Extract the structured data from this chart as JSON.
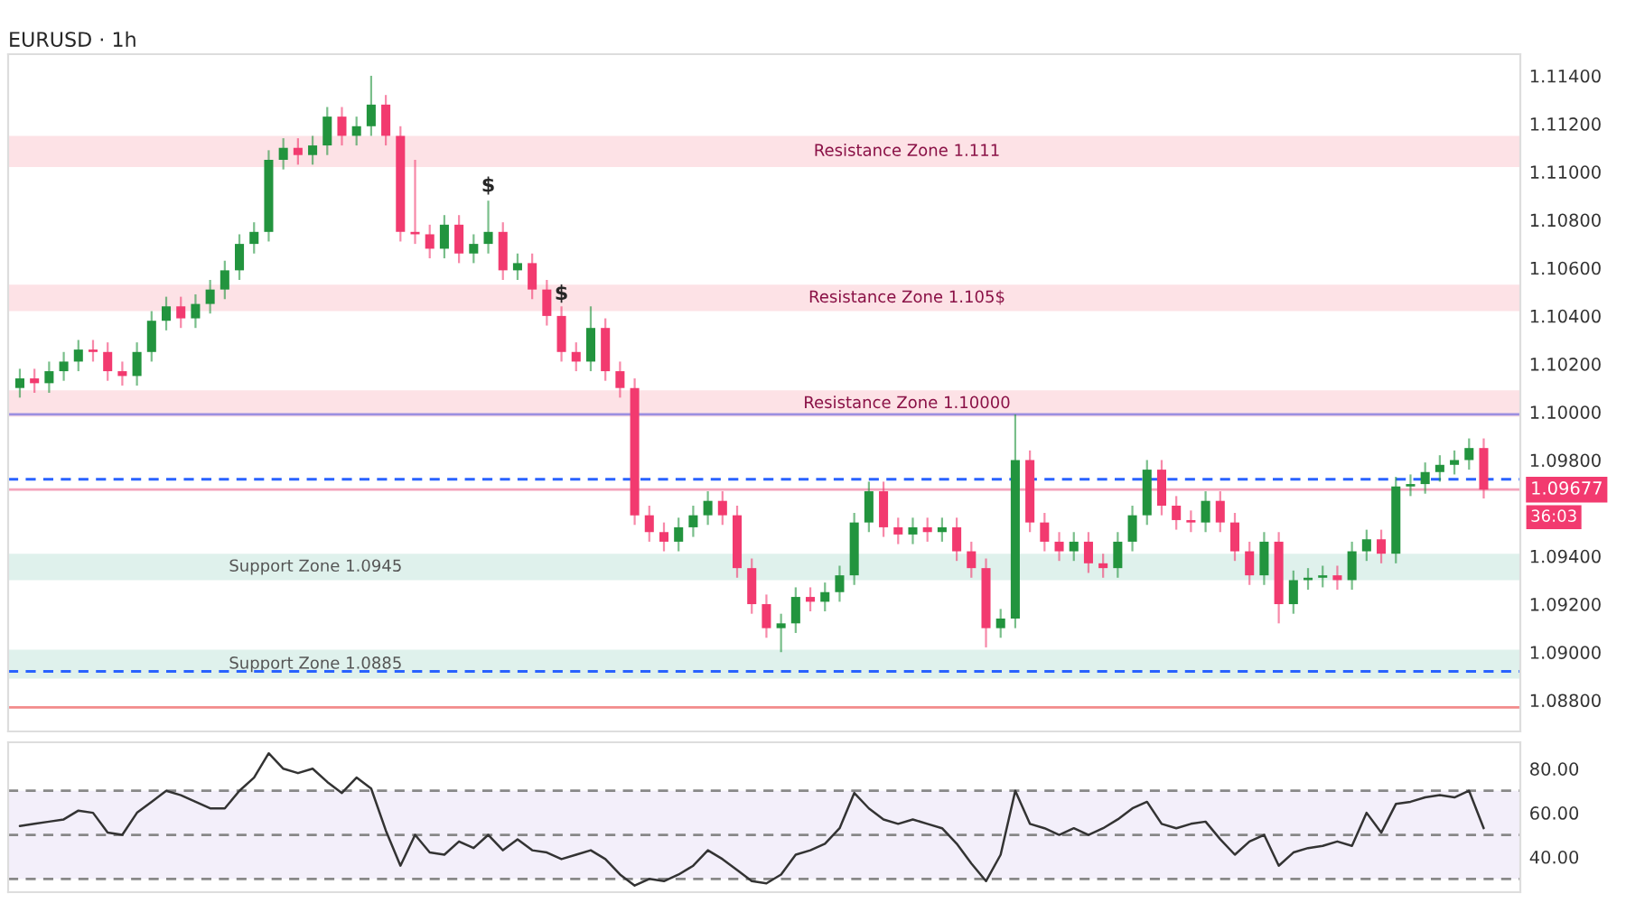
{
  "chart_data": [
    {
      "type": "candlestick",
      "title": "EURUSD · 1h",
      "categories": [
        null,
        null,
        null,
        null,
        null,
        null,
        null,
        null,
        null,
        null,
        null,
        null,
        null,
        null,
        null,
        null,
        null,
        null,
        null,
        null,
        null,
        null,
        null,
        null,
        null,
        null,
        null,
        null,
        null,
        null,
        null,
        null,
        null,
        null,
        null,
        null,
        null,
        null,
        null,
        null,
        null,
        null,
        null,
        null,
        null,
        null,
        null,
        null,
        null,
        null,
        null,
        null,
        null,
        null,
        null,
        null,
        null,
        null,
        null,
        null,
        null,
        null,
        null,
        null,
        null,
        null,
        null,
        null,
        null,
        null,
        null,
        null,
        null,
        null,
        null,
        null,
        null,
        null,
        null,
        null,
        null,
        null,
        null,
        null,
        null,
        null,
        null,
        null,
        null,
        null,
        null,
        null,
        null,
        null,
        null,
        null,
        null,
        null,
        null,
        null,
        null
      ],
      "ohlc": [
        [
          1.101,
          1.1018,
          1.1006,
          1.1014
        ],
        [
          1.1014,
          1.1018,
          1.1008,
          1.1012
        ],
        [
          1.1012,
          1.1021,
          1.1008,
          1.1017
        ],
        [
          1.1017,
          1.1025,
          1.1013,
          1.1021
        ],
        [
          1.1021,
          1.103,
          1.1017,
          1.1026
        ],
        [
          1.1026,
          1.103,
          1.1021,
          1.1025
        ],
        [
          1.1025,
          1.1029,
          1.1013,
          1.1017
        ],
        [
          1.1017,
          1.1021,
          1.1011,
          1.1015
        ],
        [
          1.1015,
          1.1029,
          1.1011,
          1.1025
        ],
        [
          1.1025,
          1.1042,
          1.1021,
          1.1038
        ],
        [
          1.1038,
          1.1048,
          1.1034,
          1.1044
        ],
        [
          1.1044,
          1.1048,
          1.1035,
          1.1039
        ],
        [
          1.1039,
          1.1049,
          1.1035,
          1.1045
        ],
        [
          1.1045,
          1.1055,
          1.1041,
          1.1051
        ],
        [
          1.1051,
          1.1063,
          1.1047,
          1.1059
        ],
        [
          1.1059,
          1.1074,
          1.1055,
          1.107
        ],
        [
          1.107,
          1.1079,
          1.1066,
          1.1075
        ],
        [
          1.1075,
          1.1109,
          1.1071,
          1.1105
        ],
        [
          1.1105,
          1.1114,
          1.1101,
          1.111
        ],
        [
          1.111,
          1.1114,
          1.1103,
          1.1107
        ],
        [
          1.1107,
          1.1115,
          1.1103,
          1.1111
        ],
        [
          1.1111,
          1.1127,
          1.1107,
          1.1123
        ],
        [
          1.1123,
          1.1127,
          1.1111,
          1.1115
        ],
        [
          1.1115,
          1.1123,
          1.1111,
          1.1119
        ],
        [
          1.1119,
          1.114,
          1.1115,
          1.1128
        ],
        [
          1.1128,
          1.1132,
          1.1111,
          1.1115
        ],
        [
          1.1115,
          1.1119,
          1.1071,
          1.1075
        ],
        [
          1.1075,
          1.1105,
          1.107,
          1.1074
        ],
        [
          1.1074,
          1.1078,
          1.1064,
          1.1068
        ],
        [
          1.1068,
          1.1082,
          1.1064,
          1.1078
        ],
        [
          1.1078,
          1.1082,
          1.1062,
          1.1066
        ],
        [
          1.1066,
          1.1074,
          1.1062,
          1.107
        ],
        [
          1.107,
          1.1088,
          1.1066,
          1.1075
        ],
        [
          1.1075,
          1.1079,
          1.1055,
          1.1059
        ],
        [
          1.1059,
          1.1066,
          1.1055,
          1.1062
        ],
        [
          1.1062,
          1.1066,
          1.1047,
          1.1051
        ],
        [
          1.1051,
          1.1055,
          1.1036,
          1.104
        ],
        [
          1.104,
          1.1044,
          1.1021,
          1.1025
        ],
        [
          1.1025,
          1.1029,
          1.1017,
          1.1021
        ],
        [
          1.1021,
          1.1044,
          1.1017,
          1.1035
        ],
        [
          1.1035,
          1.1039,
          1.1013,
          1.1017
        ],
        [
          1.1017,
          1.1021,
          1.1006,
          1.101
        ],
        [
          1.101,
          1.1014,
          1.0953,
          1.0957
        ],
        [
          1.0957,
          1.0961,
          1.0946,
          1.095
        ],
        [
          1.095,
          1.0954,
          1.0942,
          1.0946
        ],
        [
          1.0946,
          1.0956,
          1.0942,
          1.0952
        ],
        [
          1.0952,
          1.0961,
          1.0948,
          1.0957
        ],
        [
          1.0957,
          1.0967,
          1.0953,
          1.0963
        ],
        [
          1.0963,
          1.0967,
          1.0953,
          1.0957
        ],
        [
          1.0957,
          1.0961,
          1.0931,
          1.0935
        ],
        [
          1.0935,
          1.0939,
          1.0916,
          1.092
        ],
        [
          1.092,
          1.0924,
          1.0906,
          1.091
        ],
        [
          1.091,
          1.0916,
          1.09,
          1.0912
        ],
        [
          1.0912,
          1.0927,
          1.0908,
          1.0923
        ],
        [
          1.0923,
          1.0927,
          1.0917,
          1.0921
        ],
        [
          1.0921,
          1.0929,
          1.0917,
          1.0925
        ],
        [
          1.0925,
          1.0936,
          1.0921,
          1.0932
        ],
        [
          1.0932,
          1.0958,
          1.0928,
          1.0954
        ],
        [
          1.0954,
          1.0971,
          1.095,
          1.0967
        ],
        [
          1.0967,
          1.0971,
          1.0948,
          1.0952
        ],
        [
          1.0952,
          1.0956,
          1.0945,
          1.0949
        ],
        [
          1.0949,
          1.0956,
          1.0945,
          1.0952
        ],
        [
          1.0952,
          1.0956,
          1.0946,
          1.095
        ],
        [
          1.095,
          1.0956,
          1.0946,
          1.0952
        ],
        [
          1.0952,
          1.0956,
          1.0938,
          1.0942
        ],
        [
          1.0942,
          1.0946,
          1.0931,
          1.0935
        ],
        [
          1.0935,
          1.0939,
          1.0902,
          1.091
        ],
        [
          1.091,
          1.0918,
          1.0906,
          1.0914
        ],
        [
          1.0914,
          1.0999,
          1.091,
          1.098
        ],
        [
          1.098,
          1.0984,
          1.095,
          1.0954
        ],
        [
          1.0954,
          1.0958,
          1.0942,
          1.0946
        ],
        [
          1.0946,
          1.095,
          1.0938,
          1.0942
        ],
        [
          1.0942,
          1.095,
          1.0938,
          1.0946
        ],
        [
          1.0946,
          1.095,
          1.0933,
          1.0937
        ],
        [
          1.0937,
          1.0941,
          1.0931,
          1.0935
        ],
        [
          1.0935,
          1.095,
          1.0931,
          1.0946
        ],
        [
          1.0946,
          1.0961,
          1.0942,
          1.0957
        ],
        [
          1.0957,
          1.098,
          1.0953,
          1.0976
        ],
        [
          1.0976,
          1.098,
          1.0957,
          1.0961
        ],
        [
          1.0961,
          1.0965,
          1.0951,
          1.0955
        ],
        [
          1.0955,
          1.0959,
          1.095,
          1.0954
        ],
        [
          1.0954,
          1.0967,
          1.095,
          1.0963
        ],
        [
          1.0963,
          1.0967,
          1.095,
          1.0954
        ],
        [
          1.0954,
          1.0958,
          1.0938,
          1.0942
        ],
        [
          1.0942,
          1.0946,
          1.0928,
          1.0932
        ],
        [
          1.0932,
          1.095,
          1.0928,
          1.0946
        ],
        [
          1.0946,
          1.095,
          1.0912,
          1.092
        ],
        [
          1.092,
          1.0934,
          1.0916,
          1.093
        ],
        [
          1.093,
          1.0935,
          1.0926,
          1.0931
        ],
        [
          1.0931,
          1.0936,
          1.0927,
          1.0932
        ],
        [
          1.0932,
          1.0936,
          1.0926,
          1.093
        ],
        [
          1.093,
          1.0946,
          1.0926,
          1.0942
        ],
        [
          1.0942,
          1.0951,
          1.0938,
          1.0947
        ],
        [
          1.0947,
          1.0951,
          1.0937,
          1.0941
        ],
        [
          1.0941,
          1.0973,
          1.0937,
          1.0969
        ],
        [
          1.0969,
          1.0974,
          1.0965,
          1.097
        ],
        [
          1.097,
          1.0979,
          1.0966,
          1.0975
        ],
        [
          1.0975,
          1.0982,
          1.0971,
          1.0978
        ],
        [
          1.0978,
          1.0984,
          1.0974,
          1.098
        ],
        [
          1.098,
          1.0989,
          1.0976,
          1.0985
        ],
        [
          1.0985,
          1.0989,
          1.0964,
          1.09677
        ]
      ],
      "colors": [
        "#22943e",
        "#f23a6f",
        "#22943e",
        "#22943e",
        "#22943e",
        "#f23a6f",
        "#f23a6f",
        "#f23a6f",
        "#22943e",
        "#22943e",
        "#22943e",
        "#f23a6f",
        "#22943e",
        "#22943e",
        "#22943e",
        "#22943e",
        "#22943e",
        "#22943e",
        "#22943e",
        "#f23a6f",
        "#22943e",
        "#22943e",
        "#f23a6f",
        "#22943e",
        "#22943e",
        "#f23a6f",
        "#f23a6f",
        "#f23a6f",
        "#f23a6f",
        "#22943e",
        "#f23a6f",
        "#22943e",
        "#22943e",
        "#f23a6f",
        "#22943e",
        "#f23a6f",
        "#f23a6f",
        "#f23a6f",
        "#f23a6f",
        "#22943e",
        "#f23a6f",
        "#f23a6f",
        "#f23a6f",
        "#f23a6f",
        "#f23a6f",
        "#22943e",
        "#22943e",
        "#22943e",
        "#f23a6f",
        "#f23a6f",
        "#f23a6f",
        "#f23a6f",
        "#22943e",
        "#22943e",
        "#f23a6f",
        "#22943e",
        "#22943e",
        "#22943e",
        "#22943e",
        "#f23a6f",
        "#f23a6f",
        "#22943e",
        "#f23a6f",
        "#22943e",
        "#f23a6f",
        "#f23a6f",
        "#f23a6f",
        "#22943e",
        "#22943e",
        "#f23a6f",
        "#f23a6f",
        "#f23a6f",
        "#22943e",
        "#f23a6f",
        "#f23a6f",
        "#22943e",
        "#22943e",
        "#22943e",
        "#f23a6f",
        "#f23a6f",
        "#f23a6f",
        "#22943e",
        "#f23a6f",
        "#f23a6f",
        "#f23a6f",
        "#22943e",
        "#f23a6f",
        "#22943e",
        "#22943e",
        "#22943e",
        "#f23a6f",
        "#22943e",
        "#22943e",
        "#f23a6f",
        "#22943e",
        "#22943e",
        "#22943e",
        "#22943e",
        "#22943e",
        "#22943e",
        "#f23a6f"
      ],
      "ylim": [
        1.0867,
        1.1149
      ],
      "yticks": [
        {
          "value": 1.088,
          "label": "1.08800"
        },
        {
          "value": 1.09,
          "label": "1.09000"
        },
        {
          "value": 1.092,
          "label": "1.09200"
        },
        {
          "value": 1.094,
          "label": "1.09400"
        },
        {
          "value": 1.098,
          "label": "1.09800"
        },
        {
          "value": 1.1,
          "label": "1.10000"
        },
        {
          "value": 1.102,
          "label": "1.10200"
        },
        {
          "value": 1.104,
          "label": "1.10400"
        },
        {
          "value": 1.106,
          "label": "1.10600"
        },
        {
          "value": 1.108,
          "label": "1.10800"
        },
        {
          "value": 1.11,
          "label": "1.11000"
        },
        {
          "value": 1.112,
          "label": "1.11200"
        },
        {
          "value": 1.114,
          "label": "1.11400"
        }
      ],
      "tick_labels": "y",
      "bands": [
        {
          "axis": "y",
          "from": 1.1102,
          "to": 1.1115,
          "label": "Resistance Zone 1.111",
          "color": "#fde2e6"
        },
        {
          "axis": "y",
          "from": 1.1042,
          "to": 1.1053,
          "label": "Resistance Zone 1.105$",
          "color": "#fde2e6"
        },
        {
          "axis": "y",
          "from": 1.0998,
          "to": 1.1009,
          "label": "Resistance Zone 1.10000",
          "color": "#fde2e6"
        },
        {
          "axis": "y",
          "from": 1.093,
          "to": 1.0941,
          "label": "Support Zone 1.0945",
          "color": "#dff1ec"
        },
        {
          "axis": "y",
          "from": 1.0889,
          "to": 1.0901,
          "label": "Support Zone 1.0885",
          "color": "#dff1ec"
        }
      ],
      "ref_lines": [
        {
          "axis": "y",
          "value": 1.09677,
          "label": "1.09677",
          "color": "#f4a3bb",
          "line_style": "solid"
        },
        {
          "axis": "y",
          "value": 1.0999,
          "color": "#9c8fe0",
          "line_style": "solid"
        },
        {
          "axis": "y",
          "value": 1.0972,
          "color": "#2962ff",
          "line_style": "dashed"
        },
        {
          "axis": "y",
          "value": 1.0892,
          "color": "#2962ff",
          "line_style": "dashed"
        },
        {
          "axis": "y",
          "value": 1.0877,
          "color": "#f28b8b",
          "line_style": "solid"
        }
      ],
      "annotations": [
        {
          "text": "$",
          "y": 1.109
        },
        {
          "text": "$",
          "y": 1.1045
        },
        "36:03"
      ],
      "grid": false,
      "legend": false
    },
    {
      "type": "line",
      "categories": [
        null,
        null,
        null,
        null,
        null,
        null,
        null,
        null,
        null,
        null,
        null,
        null,
        null,
        null,
        null,
        null,
        null,
        null,
        null,
        null,
        null,
        null,
        null,
        null,
        null,
        null,
        null,
        null,
        null,
        null,
        null,
        null,
        null,
        null,
        null,
        null,
        null,
        null,
        null,
        null,
        null,
        null,
        null,
        null,
        null,
        null,
        null,
        null,
        null,
        null,
        null,
        null,
        null,
        null,
        null,
        null,
        null,
        null,
        null,
        null,
        null,
        null,
        null,
        null,
        null,
        null,
        null,
        null,
        null,
        null,
        null,
        null,
        null,
        null,
        null,
        null,
        null,
        null,
        null,
        null,
        null,
        null,
        null,
        null,
        null,
        null,
        null,
        null,
        null,
        null,
        null,
        null,
        null,
        null,
        null,
        null,
        null,
        null,
        null,
        null,
        null
      ],
      "series": [
        {
          "color": "#333333",
          "values": [
            54,
            55,
            56,
            57,
            61,
            60,
            51,
            50,
            60,
            65,
            70,
            68,
            65,
            62,
            62,
            70,
            76,
            87,
            80,
            78,
            80,
            74,
            69,
            76,
            71,
            52,
            36,
            50,
            42,
            41,
            47,
            44,
            50,
            43,
            48,
            43,
            42,
            39,
            41,
            43,
            39,
            32,
            27,
            30,
            29,
            32,
            36,
            43,
            39,
            34,
            29,
            28,
            32,
            41,
            43,
            46,
            53,
            69,
            62,
            57,
            55,
            57,
            55,
            53,
            46,
            37,
            29,
            41,
            70,
            55,
            53,
            50,
            53,
            50,
            53,
            57,
            62,
            65,
            55,
            53,
            55,
            56,
            48,
            41,
            47,
            50,
            36,
            42,
            44,
            45,
            47,
            45,
            60,
            51,
            64,
            65,
            67,
            68,
            67,
            70,
            53
          ]
        }
      ],
      "ylim": [
        24,
        92
      ],
      "yticks": [
        {
          "value": 40,
          "label": "40.00"
        },
        {
          "value": 60,
          "label": "60.00"
        },
        {
          "value": 80,
          "label": "80.00"
        }
      ],
      "tick_labels": "y",
      "bands": [
        {
          "axis": "y",
          "from": 30,
          "to": 70,
          "color": "#f3effa"
        }
      ],
      "ref_lines": [
        {
          "axis": "y",
          "value": 70,
          "color": "#888888",
          "line_style": "dashed"
        },
        {
          "axis": "y",
          "value": 50,
          "color": "#888888",
          "line_style": "dashed"
        },
        {
          "axis": "y",
          "value": 30,
          "color": "#888888",
          "line_style": "dashed"
        }
      ],
      "grid": false,
      "legend": false
    }
  ]
}
